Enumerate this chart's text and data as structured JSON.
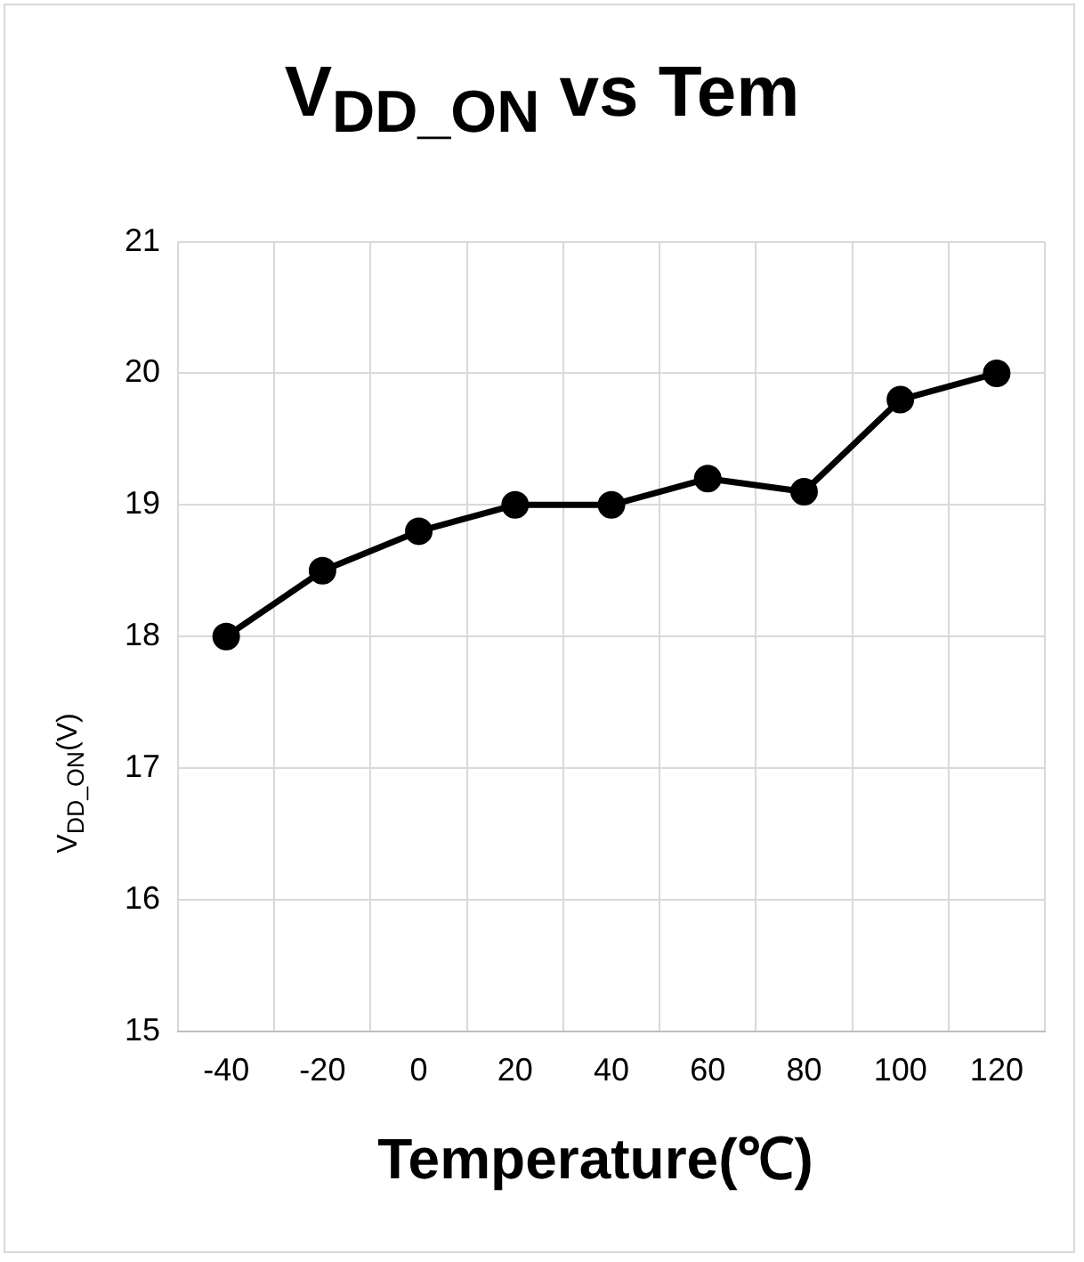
{
  "chart_data": {
    "type": "line",
    "title": "V$_{DD_ON}$ vs Tem",
    "xlabel": "Temperature(℃)",
    "ylabel": "V$_{DD_ON}$(V)",
    "categories": [
      "-40",
      "-20",
      "0",
      "20",
      "40",
      "60",
      "80",
      "100",
      "120"
    ],
    "series": [
      {
        "color": "#000000",
        "values": [
          18,
          18.5,
          18.8,
          19,
          19,
          19.2,
          19.1,
          19.8,
          20
        ]
      }
    ],
    "ylim": [
      15,
      21
    ],
    "yticks": [
      15,
      16,
      17,
      18,
      19,
      20,
      21
    ],
    "grid": true,
    "legend": false,
    "marker": "circle",
    "line_style": "solid"
  }
}
